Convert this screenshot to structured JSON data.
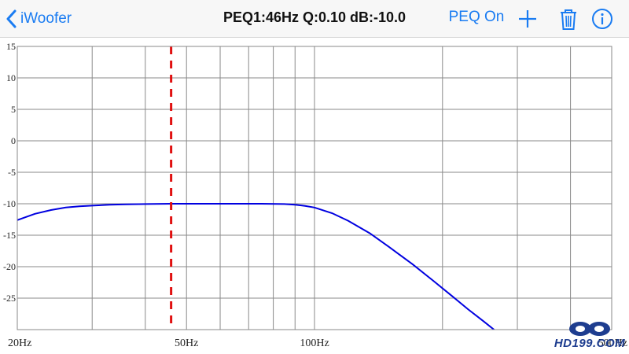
{
  "navbar": {
    "back_label": "iWoofer",
    "title": "PEQ1:46Hz Q:0.10 dB:-10.0",
    "peq_toggle_label": "PEQ On",
    "icons": [
      "chevron-left-icon",
      "plus-icon",
      "trash-icon",
      "info-icon"
    ],
    "accent_color": "#1a7cf2"
  },
  "chart_data": {
    "type": "line",
    "title": "",
    "xlabel": "",
    "ylabel": "",
    "x_scale": "log",
    "xlim": [
      20,
      500
    ],
    "ylim": [
      -30,
      15
    ],
    "grid": true,
    "y_ticks": [
      15,
      10,
      5,
      0,
      -5,
      -10,
      -15,
      -20,
      -25
    ],
    "y_tick_labels": [
      "15",
      "10",
      "5",
      "0",
      "-5",
      "-10",
      "-15",
      "-20",
      "-25"
    ],
    "x_gridlines": [
      20,
      30,
      40,
      50,
      60,
      70,
      80,
      90,
      100,
      200,
      300,
      400,
      500
    ],
    "x_tick_labels": [
      {
        "x": 20,
        "label": "20Hz"
      },
      {
        "x": 50,
        "label": "50Hz"
      },
      {
        "x": 100,
        "label": "100Hz"
      },
      {
        "x": 500,
        "label": "500Hz"
      }
    ],
    "series": [
      {
        "color": "#0000e0",
        "x": [
          20,
          22,
          24,
          26,
          28,
          30,
          33,
          36,
          40,
          46,
          55,
          65,
          75,
          85,
          90,
          95,
          100,
          110,
          120,
          135,
          150,
          170,
          190,
          210,
          230,
          250,
          270,
          290
        ],
        "y": [
          -12.6,
          -11.6,
          -11.0,
          -10.6,
          -10.4,
          -10.3,
          -10.15,
          -10.1,
          -10.05,
          -10.0,
          -10.0,
          -10.0,
          -10.0,
          -10.05,
          -10.15,
          -10.35,
          -10.6,
          -11.5,
          -12.7,
          -14.7,
          -16.9,
          -19.6,
          -22.2,
          -24.6,
          -26.8,
          -28.7,
          -30.5,
          -32.1
        ]
      }
    ],
    "marker": {
      "x": 46,
      "color": "#e01010",
      "style": "dashed"
    },
    "grid_color": "#8a8a8a",
    "background": "#ffffff"
  },
  "watermark": {
    "text": "HD199.COM"
  }
}
